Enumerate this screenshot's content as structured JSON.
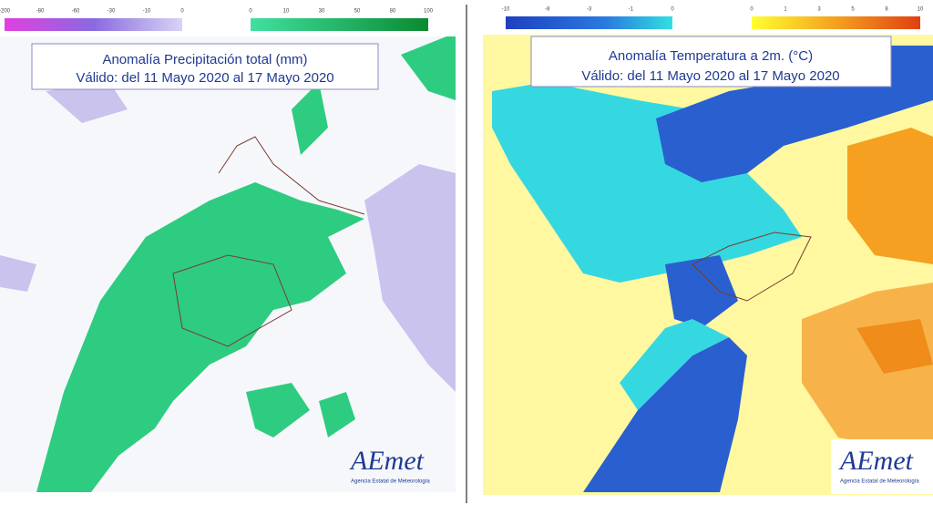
{
  "maps": [
    {
      "title": "Anomalía Precipitación total (mm)",
      "subtitle": "Válido: del 11 Mayo 2020 al 17 Mayo 2020",
      "legend_negative": [
        "-200",
        "-80",
        "-60",
        "-30",
        "-10",
        "0"
      ],
      "legend_positive": [
        "0",
        "10",
        "30",
        "50",
        "80",
        "100"
      ],
      "logo": "AEmet",
      "logo_caption": "Agencia Estatal de Meteorología"
    },
    {
      "title": "Anomalía Temperatura a 2m. (°C)",
      "subtitle": "Válido: del 11 Mayo 2020 al 17 Mayo 2020",
      "legend_negative": [
        "-10",
        "-8",
        "-3",
        "-1",
        "0"
      ],
      "legend_positive": [
        "0",
        "1",
        "3",
        "5",
        "8",
        "10"
      ],
      "logo": "AEmet",
      "logo_caption": "Agencia Estatal de Meteorología"
    }
  ]
}
